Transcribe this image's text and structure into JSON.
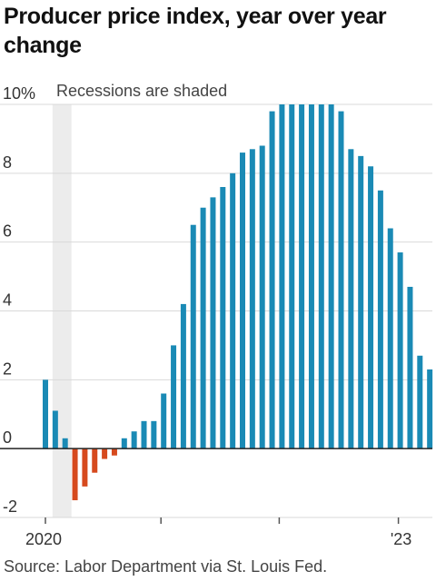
{
  "title": "Producer price index, year over year change",
  "source": "Source: Labor Department via St. Louis Fed.",
  "colors": {
    "positive": "#1a8ab5",
    "negative": "#d64a1e",
    "recession": "#ececec",
    "grid": "#d9d9d9",
    "zero": "#222222"
  },
  "chart_data": {
    "type": "bar",
    "title": "Producer price index, year over year change",
    "annotation": "Recessions are shaded",
    "ylim": [
      -2,
      10
    ],
    "yticks": [
      -2,
      0,
      2,
      4,
      6,
      8,
      10
    ],
    "ytick_labels": [
      "-2",
      "0",
      "2",
      "4",
      "6",
      "8",
      "10%"
    ],
    "x_tick_labels": [
      {
        "label": "2020",
        "index": 0
      },
      {
        "label": "",
        "index": 12
      },
      {
        "label": "",
        "index": 24
      },
      {
        "label": "",
        "index": 36
      },
      {
        "label": "'23",
        "index": 36
      }
    ],
    "recession_index_range": [
      1,
      2
    ],
    "categories": [
      "2020-01",
      "2020-02",
      "2020-03",
      "2020-04",
      "2020-05",
      "2020-06",
      "2020-07",
      "2020-08",
      "2020-09",
      "2020-10",
      "2020-11",
      "2020-12",
      "2021-01",
      "2021-02",
      "2021-03",
      "2021-04",
      "2021-05",
      "2021-06",
      "2021-07",
      "2021-08",
      "2021-09",
      "2021-10",
      "2021-11",
      "2021-12",
      "2022-01",
      "2022-02",
      "2022-03",
      "2022-04",
      "2022-05",
      "2022-06",
      "2022-07",
      "2022-08",
      "2022-09",
      "2022-10",
      "2022-11",
      "2022-12",
      "2023-01",
      "2023-02",
      "2023-03",
      "2023-04"
    ],
    "values": [
      2.0,
      1.1,
      0.3,
      -1.5,
      -1.1,
      -0.7,
      -0.3,
      -0.2,
      0.3,
      0.5,
      0.8,
      0.8,
      1.6,
      3.0,
      4.2,
      6.5,
      7.0,
      7.3,
      7.6,
      8.0,
      8.6,
      8.7,
      8.8,
      9.8,
      10.0,
      10.0,
      10.0,
      10.0,
      10.0,
      10.0,
      9.8,
      8.7,
      8.5,
      8.2,
      7.5,
      6.4,
      5.7,
      4.7,
      2.7,
      2.3
    ]
  }
}
